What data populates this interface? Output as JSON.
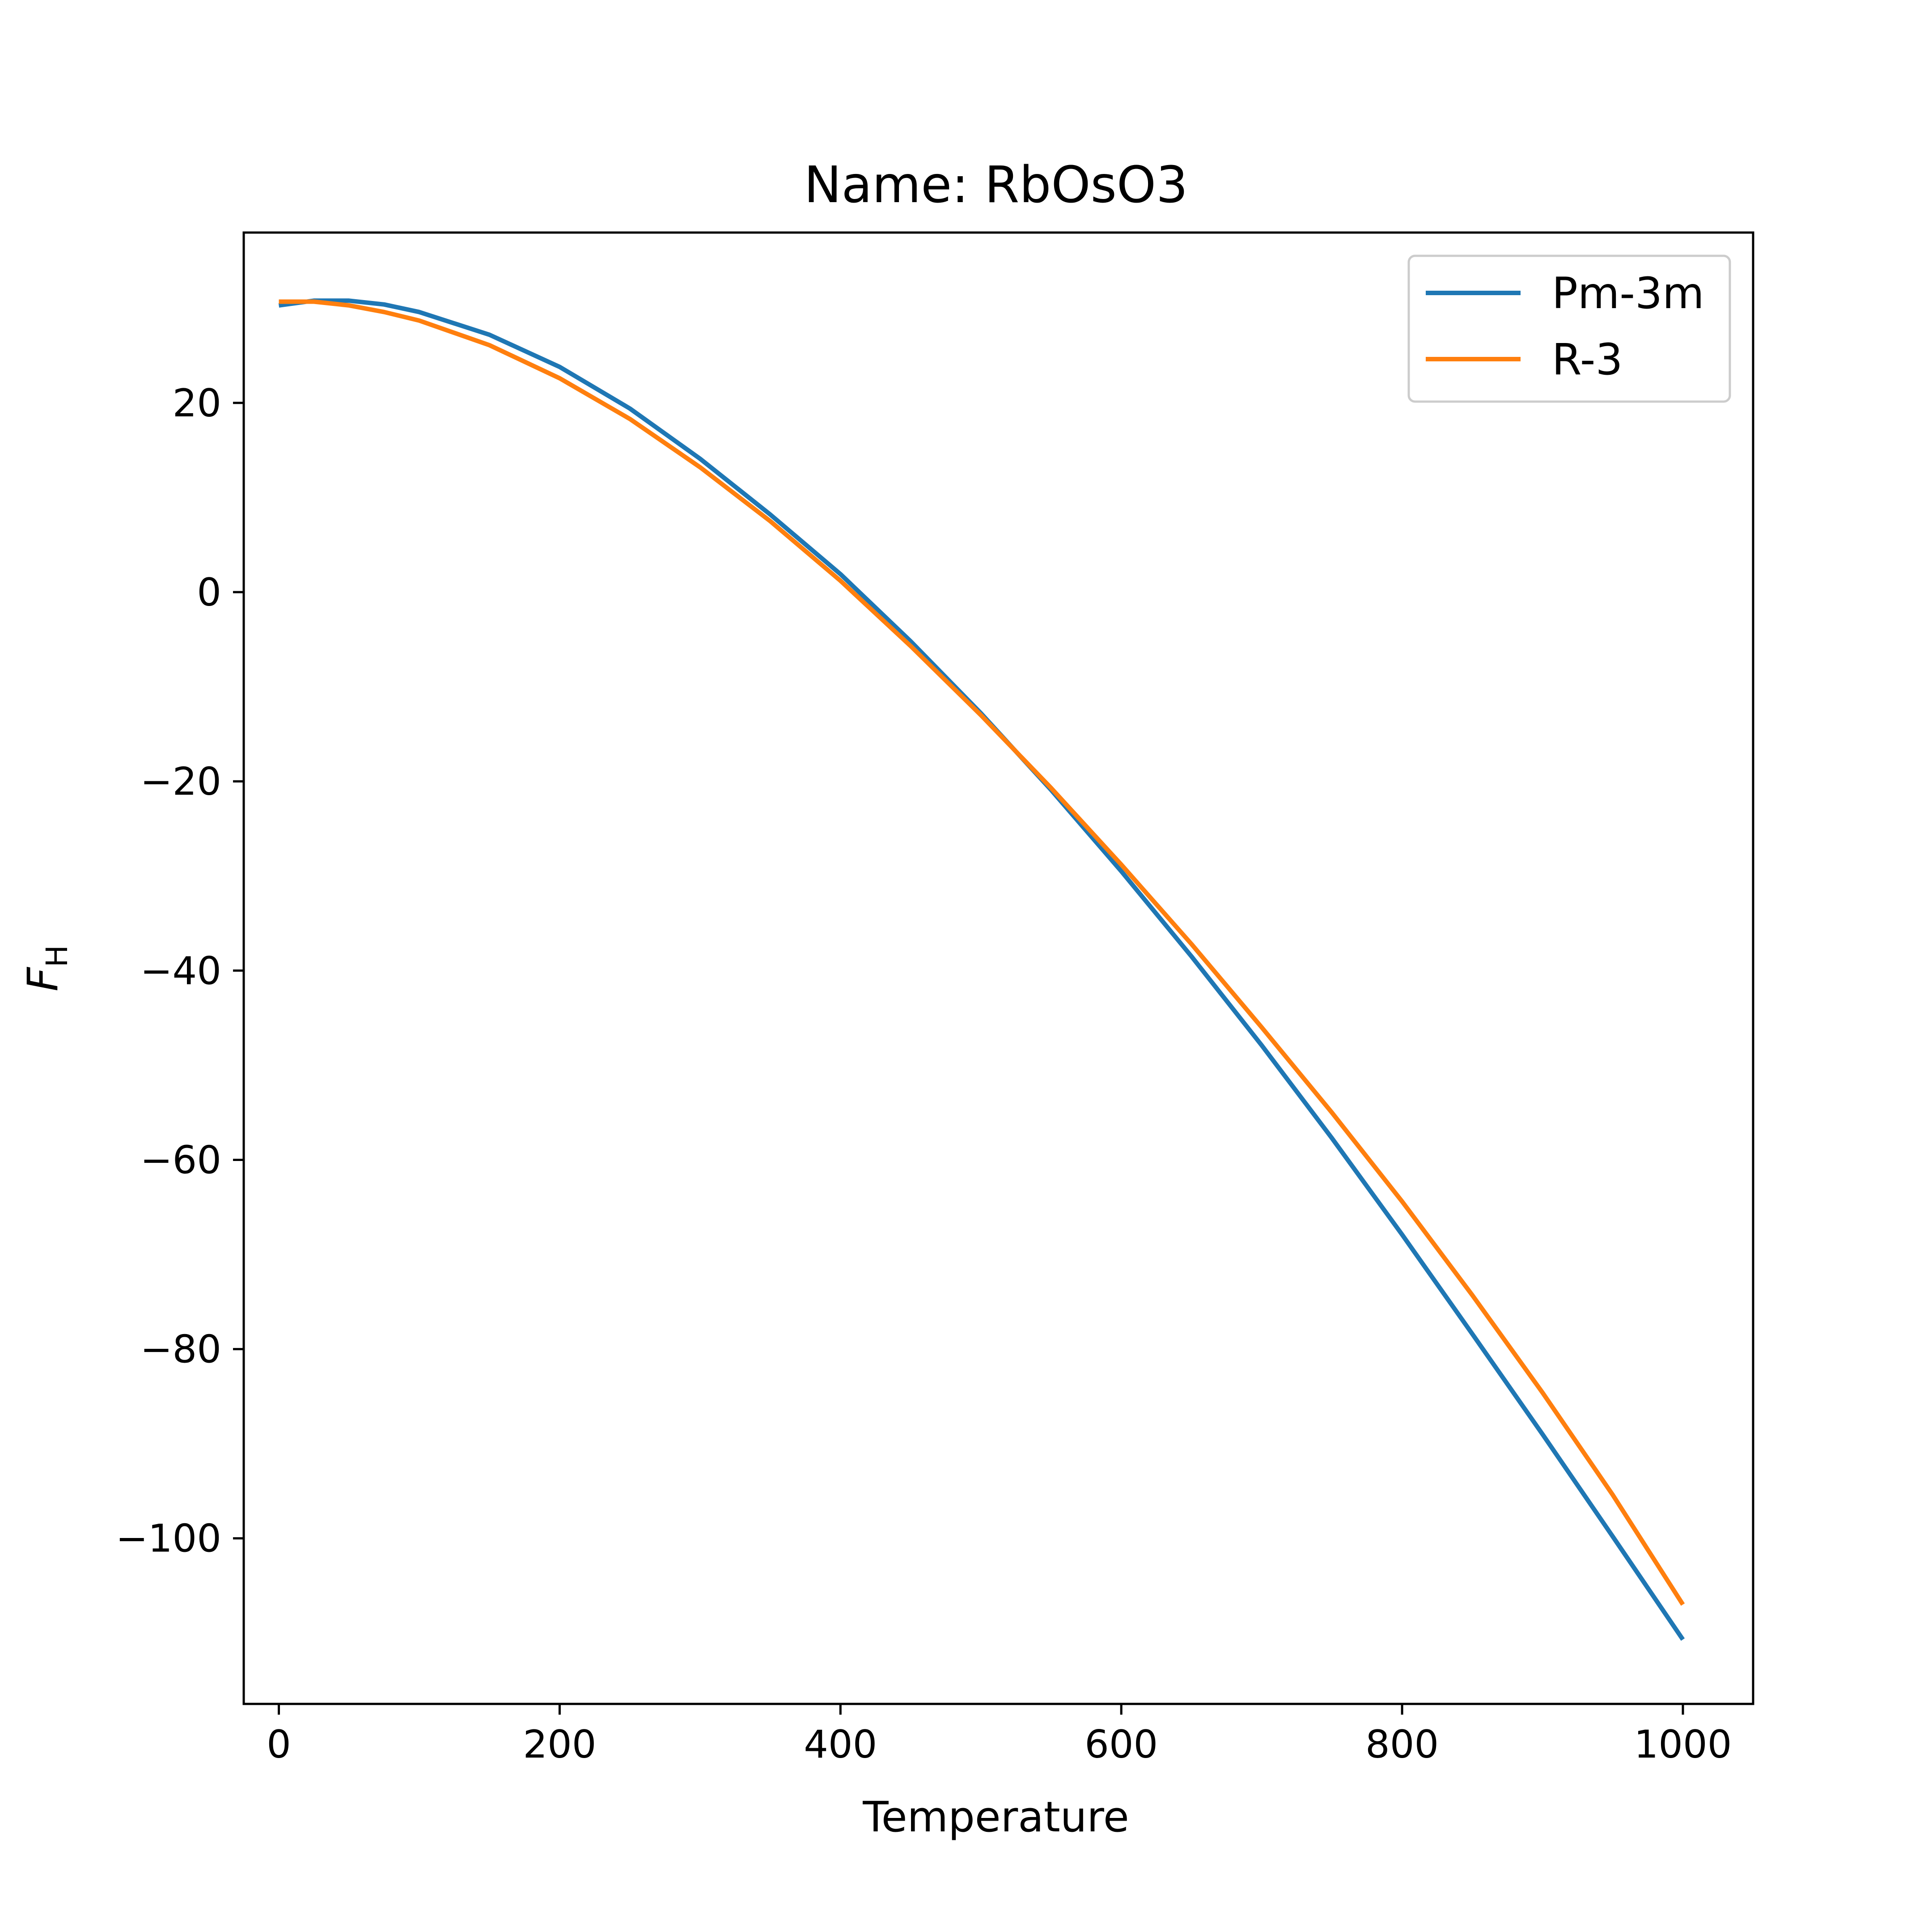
{
  "chart_data": {
    "type": "line",
    "title": "Name: RbOsO3",
    "xlabel": "Temperature",
    "ylabel_main": "F",
    "ylabel_sub": "H",
    "xlim": [
      -25,
      1050
    ],
    "ylim": [
      -117.5,
      38.0
    ],
    "xticks": [
      0,
      200,
      400,
      600,
      800,
      1000
    ],
    "yticks": [
      20,
      0,
      -20,
      -40,
      -60,
      -80,
      -100
    ],
    "grid": false,
    "legend_position": "top-right",
    "series": [
      {
        "name": "Pm-3m",
        "color": "#1f77b4",
        "x": [
          0,
          25,
          50,
          75,
          100,
          150,
          200,
          250,
          300,
          350,
          400,
          450,
          500,
          550,
          600,
          650,
          700,
          750,
          800,
          850,
          900,
          950,
          1000
        ],
        "y": [
          30.3,
          30.8,
          30.8,
          30.4,
          29.6,
          27.2,
          23.8,
          19.4,
          14.1,
          8.2,
          1.9,
          -5.2,
          -12.8,
          -20.9,
          -29.5,
          -38.5,
          -47.9,
          -57.7,
          -67.9,
          -78.4,
          -89.0,
          -99.8,
          -110.7
        ]
      },
      {
        "name": "R-3",
        "color": "#ff7f0e",
        "x": [
          0,
          25,
          50,
          75,
          100,
          150,
          200,
          250,
          300,
          350,
          400,
          450,
          500,
          550,
          600,
          650,
          700,
          750,
          800,
          850,
          900,
          950,
          1000
        ],
        "y": [
          30.7,
          30.7,
          30.3,
          29.6,
          28.7,
          26.1,
          22.6,
          18.3,
          13.2,
          7.5,
          1.2,
          -5.7,
          -13.0,
          -20.7,
          -28.8,
          -37.2,
          -46.0,
          -55.0,
          -64.4,
          -74.3,
          -84.6,
          -95.4,
          -107.0
        ]
      }
    ]
  }
}
